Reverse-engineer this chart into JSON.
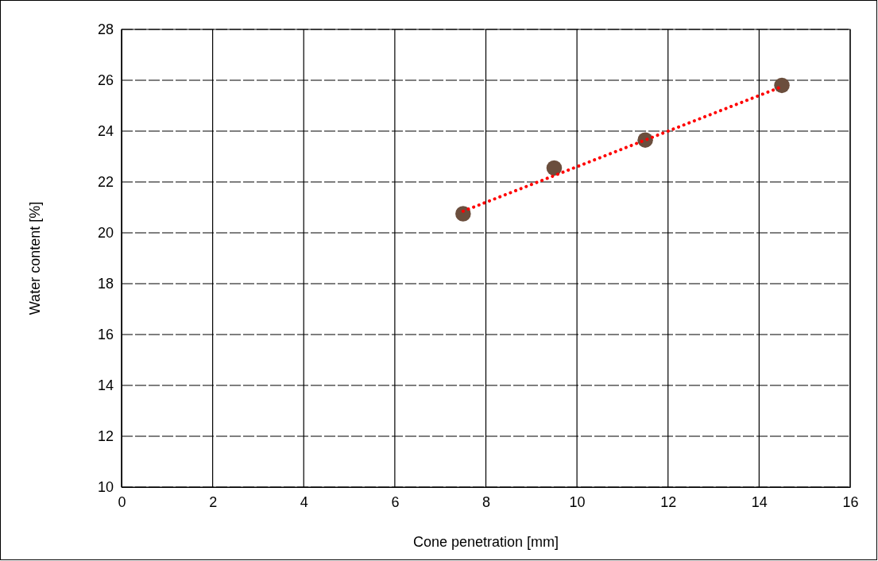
{
  "chart_data": {
    "type": "scatter",
    "xlabel": "Cone penetration [mm]",
    "ylabel": "Water content [%]",
    "xlim": [
      0,
      16
    ],
    "xticks": [
      0,
      2,
      4,
      6,
      8,
      10,
      12,
      14,
      16
    ],
    "ylim": [
      10,
      28
    ],
    "yticks": [
      10,
      12,
      14,
      16,
      18,
      20,
      22,
      24,
      26,
      28
    ],
    "grid": true,
    "series": [
      {
        "color": "#6b4e3d",
        "marker": "circle",
        "x": [
          7.5,
          9.5,
          11.5,
          14.5
        ],
        "values": [
          20.75,
          22.55,
          23.65,
          25.8
        ]
      },
      {
        "type": "line",
        "color": "#ff0000",
        "line_style": "dotted",
        "marker": "none",
        "x": [
          7.5,
          14.5
        ],
        "values": [
          20.85,
          25.75
        ]
      }
    ]
  }
}
